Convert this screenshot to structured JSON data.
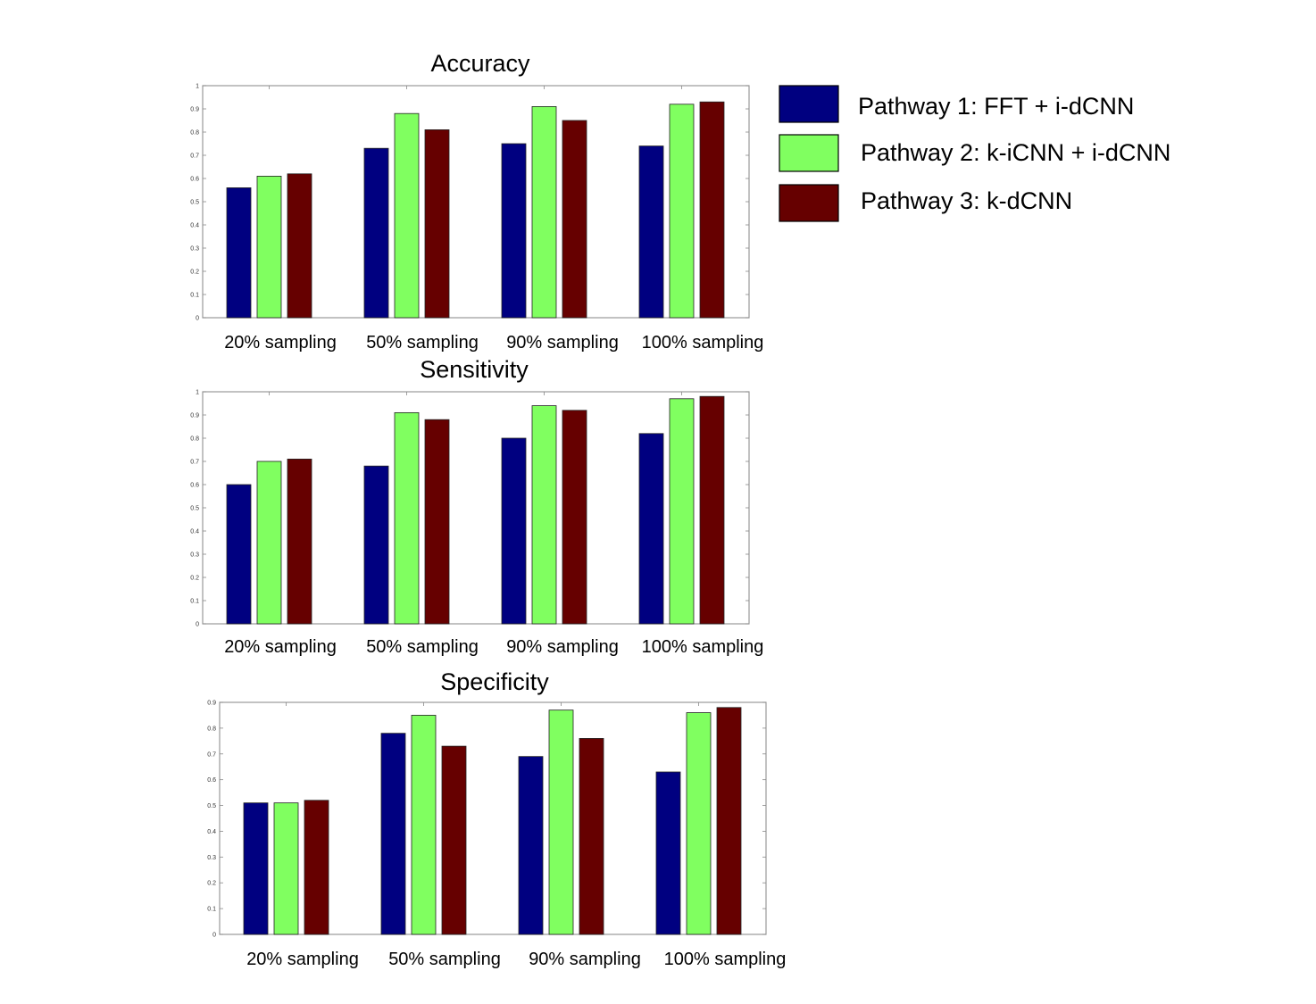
{
  "legend": [
    {
      "label": "Pathway 1: FFT + i-dCNN",
      "color": "#000080"
    },
    {
      "label": "Pathway 2: k-iCNN + i-dCNN",
      "color": "#80ff60"
    },
    {
      "label": "Pathway 3: k-dCNN",
      "color": "#660000"
    }
  ],
  "chart_data": [
    {
      "type": "bar",
      "title": "Accuracy",
      "categories": [
        "20% sampling",
        "50% sampling",
        "90% sampling",
        "100% sampling"
      ],
      "series": [
        {
          "name": "Pathway 1: FFT + i-dCNN",
          "values": [
            0.56,
            0.73,
            0.75,
            0.74
          ]
        },
        {
          "name": "Pathway 2: k-iCNN + i-dCNN",
          "values": [
            0.61,
            0.88,
            0.91,
            0.92
          ]
        },
        {
          "name": "Pathway 3: k-dCNN",
          "values": [
            0.62,
            0.81,
            0.85,
            0.93
          ]
        }
      ],
      "ylim": [
        0,
        1
      ],
      "yticks": [
        "0",
        "0.1",
        "0.2",
        "0.3",
        "0.4",
        "0.5",
        "0.6",
        "0.7",
        "0.8",
        "0.9",
        "1"
      ],
      "xlabel": "",
      "ylabel": ""
    },
    {
      "type": "bar",
      "title": "Sensitivity",
      "categories": [
        "20% sampling",
        "50% sampling",
        "90% sampling",
        "100% sampling"
      ],
      "series": [
        {
          "name": "Pathway 1: FFT + i-dCNN",
          "values": [
            0.6,
            0.68,
            0.8,
            0.82
          ]
        },
        {
          "name": "Pathway 2: k-iCNN + i-dCNN",
          "values": [
            0.7,
            0.91,
            0.94,
            0.97
          ]
        },
        {
          "name": "Pathway 3: k-dCNN",
          "values": [
            0.71,
            0.88,
            0.92,
            0.98
          ]
        }
      ],
      "ylim": [
        0,
        1
      ],
      "yticks": [
        "0",
        "0.1",
        "0.2",
        "0.3",
        "0.4",
        "0.5",
        "0.6",
        "0.7",
        "0.8",
        "0.9",
        "1"
      ],
      "xlabel": "",
      "ylabel": ""
    },
    {
      "type": "bar",
      "title": "Specificity",
      "categories": [
        "20% sampling",
        "50% sampling",
        "90% sampling",
        "100% sampling"
      ],
      "series": [
        {
          "name": "Pathway 1: FFT + i-dCNN",
          "values": [
            0.51,
            0.78,
            0.69,
            0.63
          ]
        },
        {
          "name": "Pathway 2: k-iCNN + i-dCNN",
          "values": [
            0.51,
            0.85,
            0.87,
            0.86
          ]
        },
        {
          "name": "Pathway 3: k-dCNN",
          "values": [
            0.52,
            0.73,
            0.76,
            0.88
          ]
        }
      ],
      "ylim": [
        0,
        0.9
      ],
      "yticks": [
        "0",
        "0.1",
        "0.2",
        "0.3",
        "0.4",
        "0.5",
        "0.6",
        "0.7",
        "0.8",
        "0.9"
      ],
      "xlabel": "",
      "ylabel": ""
    }
  ]
}
